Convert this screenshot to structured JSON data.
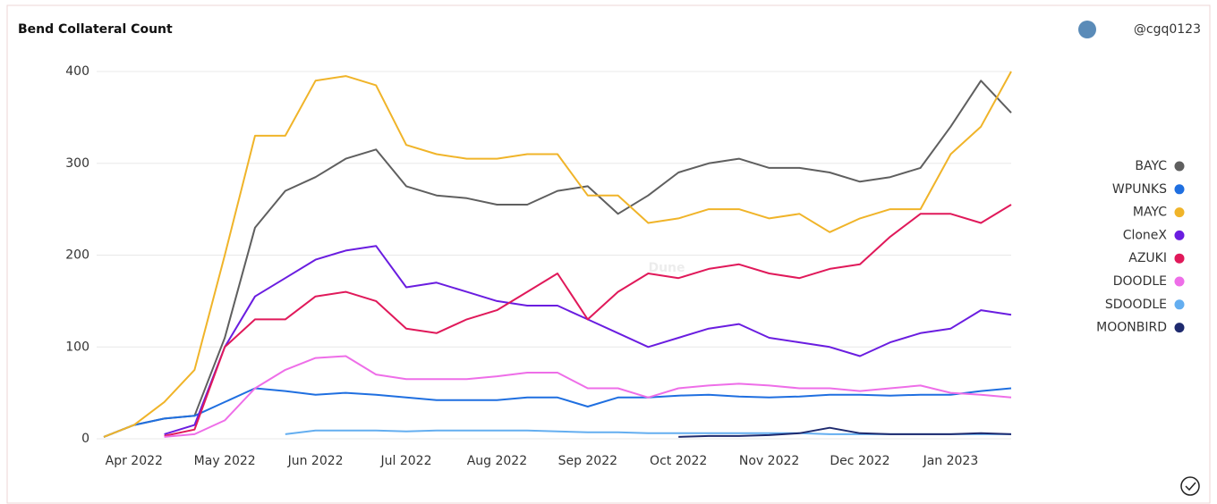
{
  "chart_data": {
    "type": "line",
    "title": "Bend Collateral Count",
    "author": "@cgq0123",
    "watermark": "Dune",
    "categories": [
      null,
      "Apr 2022",
      null,
      null,
      "May 2022",
      null,
      null,
      "Jun 2022",
      null,
      null,
      "Jul 2022",
      null,
      null,
      "Aug 2022",
      null,
      null,
      "Sep 2022",
      null,
      null,
      "Oct 2022",
      null,
      null,
      "Nov 2022",
      null,
      null,
      "Dec 2022",
      null,
      null,
      "Jan 2023",
      null,
      null
    ],
    "ylim": [
      0,
      400
    ],
    "yticks": [
      0,
      100,
      200,
      300,
      400
    ],
    "grid": true,
    "legend": "right",
    "series": [
      {
        "name": "BAYC",
        "color": "#5f5f5f",
        "values": [
          2,
          15,
          22,
          25,
          110,
          230,
          270,
          285,
          305,
          315,
          275,
          265,
          262,
          255,
          255,
          270,
          275,
          245,
          265,
          290,
          300,
          305,
          295,
          295,
          290,
          280,
          285,
          295,
          340,
          390,
          355
        ]
      },
      {
        "name": "WPUNKS",
        "color": "#1f6fe0",
        "values": [
          2,
          15,
          22,
          25,
          40,
          55,
          52,
          48,
          50,
          48,
          45,
          42,
          42,
          42,
          45,
          45,
          35,
          45,
          45,
          47,
          48,
          46,
          45,
          46,
          48,
          48,
          47,
          48,
          48,
          52,
          55
        ]
      },
      {
        "name": "MAYC",
        "color": "#f0b429",
        "values": [
          2,
          15,
          40,
          75,
          200,
          330,
          330,
          390,
          395,
          385,
          320,
          310,
          305,
          305,
          310,
          310,
          265,
          265,
          235,
          240,
          250,
          250,
          240,
          245,
          225,
          240,
          250,
          250,
          310,
          340,
          400
        ]
      },
      {
        "name": "CloneX",
        "color": "#6a1de0",
        "values": [
          null,
          null,
          5,
          15,
          100,
          155,
          175,
          195,
          205,
          210,
          165,
          170,
          160,
          150,
          145,
          145,
          130,
          115,
          100,
          110,
          120,
          125,
          110,
          105,
          100,
          90,
          105,
          115,
          120,
          140,
          135
        ]
      },
      {
        "name": "AZUKI",
        "color": "#e0195a",
        "values": [
          null,
          null,
          3,
          10,
          100,
          130,
          130,
          155,
          160,
          150,
          120,
          115,
          130,
          140,
          160,
          180,
          130,
          160,
          180,
          175,
          185,
          190,
          180,
          175,
          185,
          190,
          220,
          245,
          245,
          235,
          255
        ]
      },
      {
        "name": "DOODLE",
        "color": "#ee6ee8",
        "values": [
          null,
          null,
          2,
          5,
          20,
          55,
          75,
          88,
          90,
          70,
          65,
          65,
          65,
          68,
          72,
          72,
          55,
          55,
          45,
          55,
          58,
          60,
          58,
          55,
          55,
          52,
          55,
          58,
          50,
          48,
          45
        ]
      },
      {
        "name": "SDOODLE",
        "color": "#64aef0",
        "values": [
          null,
          null,
          null,
          null,
          null,
          null,
          5,
          9,
          9,
          9,
          8,
          9,
          9,
          9,
          9,
          8,
          7,
          7,
          6,
          6,
          6,
          6,
          6,
          6,
          5,
          5,
          5,
          5,
          5,
          5,
          5
        ]
      },
      {
        "name": "MOONBIRD",
        "color": "#1e2a6e",
        "values": [
          null,
          null,
          null,
          null,
          null,
          null,
          null,
          null,
          null,
          null,
          null,
          null,
          null,
          null,
          null,
          null,
          null,
          null,
          null,
          2,
          3,
          3,
          4,
          6,
          12,
          6,
          5,
          5,
          5,
          6,
          5
        ]
      }
    ]
  }
}
